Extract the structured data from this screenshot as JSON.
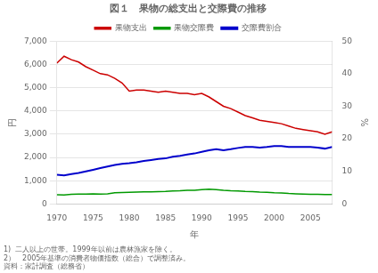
{
  "chart_data": {
    "type": "line",
    "title": "図１　果物の総支出と交際費の推移",
    "x": [
      1970,
      1971,
      1972,
      1973,
      1974,
      1975,
      1976,
      1977,
      1978,
      1979,
      1980,
      1981,
      1982,
      1983,
      1984,
      1985,
      1986,
      1987,
      1988,
      1989,
      1990,
      1991,
      1992,
      1993,
      1994,
      1995,
      1996,
      1997,
      1998,
      1999,
      2000,
      2001,
      2002,
      2003,
      2004,
      2005,
      2006,
      2007,
      2008
    ],
    "series": [
      {
        "name": "果物支出",
        "color": "#cc0000",
        "values": [
          6050,
          6350,
          6200,
          6100,
          5900,
          5750,
          5600,
          5550,
          5400,
          5200,
          4850,
          4900,
          4900,
          4850,
          4800,
          4850,
          4800,
          4750,
          4750,
          4700,
          4750,
          4600,
          4400,
          4200,
          4100,
          3950,
          3800,
          3700,
          3600,
          3550,
          3500,
          3450,
          3350,
          3250,
          3200,
          3150,
          3100,
          3000,
          3100
        ]
      },
      {
        "name": "果物交際費",
        "color": "#009900",
        "values": [
          400,
          390,
          420,
          430,
          430,
          440,
          430,
          440,
          480,
          490,
          500,
          510,
          520,
          520,
          530,
          540,
          560,
          570,
          590,
          590,
          620,
          640,
          620,
          590,
          570,
          560,
          540,
          530,
          510,
          500,
          480,
          470,
          450,
          440,
          430,
          420,
          420,
          410,
          410
        ]
      },
      {
        "name": "交際費割合",
        "color": "#0000cc",
        "axis": "y2",
        "values": [
          9.0,
          8.8,
          9.2,
          9.5,
          10.0,
          10.5,
          11.0,
          11.5,
          12.0,
          12.3,
          12.5,
          12.8,
          13.2,
          13.5,
          13.8,
          14.0,
          14.5,
          14.8,
          15.2,
          15.5,
          16.0,
          16.5,
          16.8,
          16.5,
          16.8,
          17.2,
          17.5,
          17.5,
          17.3,
          17.5,
          17.8,
          17.8,
          17.5,
          17.5,
          17.5,
          17.5,
          17.3,
          17.0,
          17.5
        ]
      }
    ],
    "xlim": [
      1970,
      2008
    ],
    "xticks": [
      1970,
      1975,
      1980,
      1985,
      1990,
      1995,
      2000,
      2005
    ],
    "ylim": [
      0,
      7000
    ],
    "yticks": [
      0,
      {
        "value": 1000,
        "label": "1,000"
      },
      {
        "value": 2000,
        "label": "2,000"
      },
      {
        "value": 3000,
        "label": "3,000"
      },
      {
        "value": 4000,
        "label": "4,000"
      },
      {
        "value": 5000,
        "label": "5,000"
      },
      {
        "value": 6000,
        "label": "6,000"
      },
      {
        "value": 7000,
        "label": "7,000"
      }
    ],
    "y2lim": [
      0,
      50
    ],
    "y2ticks": [
      0,
      10,
      20,
      30,
      40,
      50
    ],
    "xlabel": "年",
    "ylabel": "円",
    "y2label": "%",
    "annotations": [
      "1)  二人以上の世帯。1999年以前は農林漁家を除く。",
      "2）　2005年基準の消費者物価指数（総合）で調整済み。",
      "資料：家計調査（総務省）"
    ],
    "grid": "y",
    "legend": "top",
    "marker": "none"
  }
}
